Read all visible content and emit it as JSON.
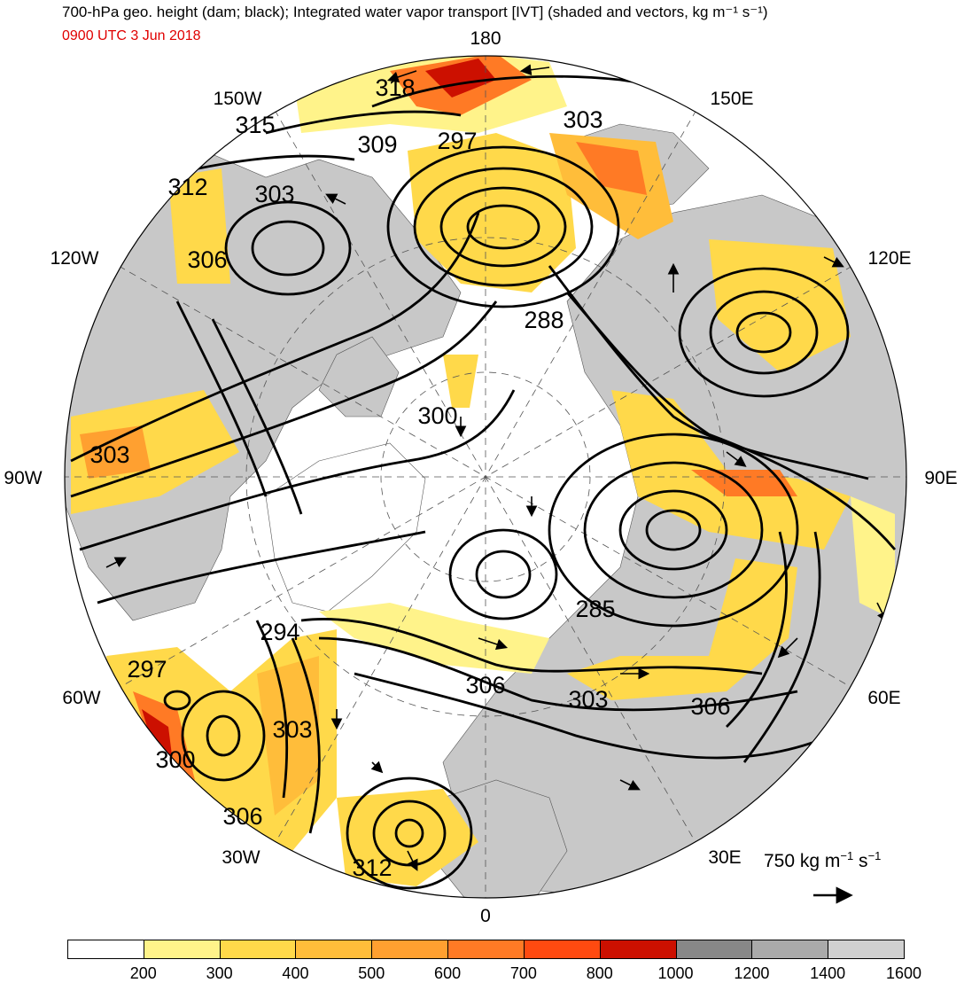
{
  "header": {
    "title": "700-hPa geo. height (dam; black); Integrated water vapor transport [IVT] (shaded and vectors, kg m⁻¹ s⁻¹)",
    "date": "0900 UTC 3 Jun 2018"
  },
  "longitude_labels": {
    "top": "180",
    "bottom": "0",
    "w150": "150W",
    "e150": "150E",
    "w120": "120W",
    "e120": "120E",
    "w90": "90W",
    "e90": "90E",
    "w60": "60W",
    "e60": "60E",
    "w30": "30W",
    "e30": "30E"
  },
  "contour_labels": [
    "318",
    "315",
    "309",
    "297",
    "303",
    "312",
    "303",
    "306",
    "288",
    "300",
    "303",
    "285",
    "294",
    "297",
    "306",
    "303",
    "306",
    "303",
    "300",
    "306",
    "312"
  ],
  "reference_vector": {
    "label": "750 kg m",
    "exp1": "−1",
    "mid": " s",
    "exp2": "−1"
  },
  "colorbar": {
    "ticks": [
      "200",
      "300",
      "400",
      "500",
      "600",
      "700",
      "800",
      "1000",
      "1200",
      "1400",
      "1600"
    ],
    "colors": [
      "#ffffff",
      "#fff38a",
      "#ffd94a",
      "#ffbd3a",
      "#ffa030",
      "#ff7a25",
      "#ff4a10",
      "#cc1000",
      "#888888",
      "#aaaaaa",
      "#d0d0d0"
    ]
  },
  "colors": {
    "land": "#c8c8c8",
    "ocean": "#ffffff",
    "contour": "#000000",
    "date": "#e00000"
  }
}
